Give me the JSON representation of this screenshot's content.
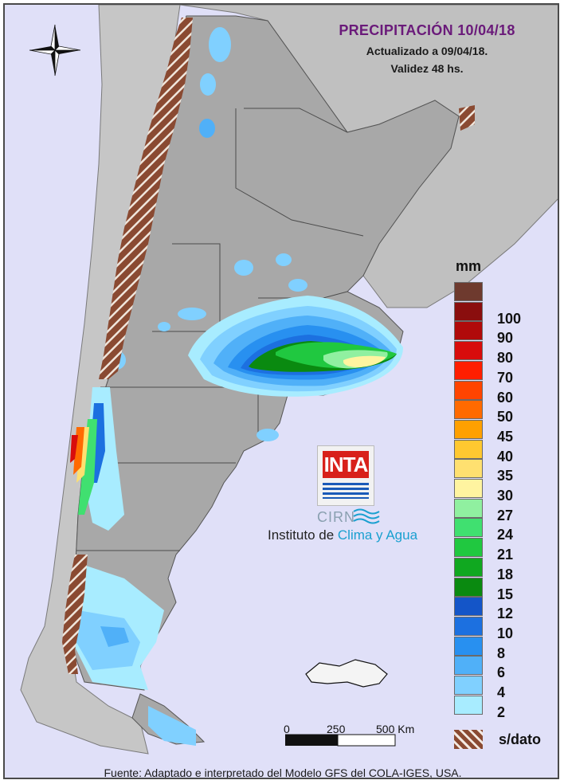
{
  "header": {
    "title": "PRECIPITACIÓN 10/04/18",
    "updated": "Actualizado a 09/04/18.",
    "validity": "Validez 48 hs."
  },
  "legend": {
    "unit": "mm",
    "classes": [
      {
        "label": "",
        "color": "#6e3a2e"
      },
      {
        "label": "100",
        "color": "#8a0e0e"
      },
      {
        "label": "90",
        "color": "#b00a0a"
      },
      {
        "label": "80",
        "color": "#d80c0c"
      },
      {
        "label": "70",
        "color": "#ff1e00"
      },
      {
        "label": "60",
        "color": "#ff4400"
      },
      {
        "label": "50",
        "color": "#ff6a00"
      },
      {
        "label": "45",
        "color": "#ffa000"
      },
      {
        "label": "40",
        "color": "#ffc830"
      },
      {
        "label": "35",
        "color": "#ffe070"
      },
      {
        "label": "30",
        "color": "#fff4a0"
      },
      {
        "label": "27",
        "color": "#90f0a0"
      },
      {
        "label": "24",
        "color": "#40e070"
      },
      {
        "label": "21",
        "color": "#20c840"
      },
      {
        "label": "18",
        "color": "#10a820"
      },
      {
        "label": "15",
        "color": "#0a8a10"
      },
      {
        "label": "12",
        "color": "#1455c8"
      },
      {
        "label": "10",
        "color": "#1c70e0"
      },
      {
        "label": "8",
        "color": "#2890f0"
      },
      {
        "label": "6",
        "color": "#50b0f8"
      },
      {
        "label": "4",
        "color": "#80d0ff"
      },
      {
        "label": "2",
        "color": "#a8ecff"
      }
    ],
    "nodata_label": "s/dato"
  },
  "scale": {
    "labels": [
      "0",
      "250",
      "500 Km"
    ]
  },
  "logo": {
    "inta": "INTA",
    "cirn": "CIRN",
    "institute_prefix": "Instituto de ",
    "institute_highlight": "Clima y Agua"
  },
  "footer": "Fuente: Adaptado e interpretado del Modelo GFS del COLA-IGES, USA.",
  "colors": {
    "sea": "#e0e0f8",
    "land_neighbor": "#bdbdbd",
    "argentina_relief": "#a9a9a9",
    "nodata_brown": "#8a4a32",
    "title_purple": "#6a1a7a"
  },
  "icons": {
    "compass": "compass-rose-icon"
  }
}
